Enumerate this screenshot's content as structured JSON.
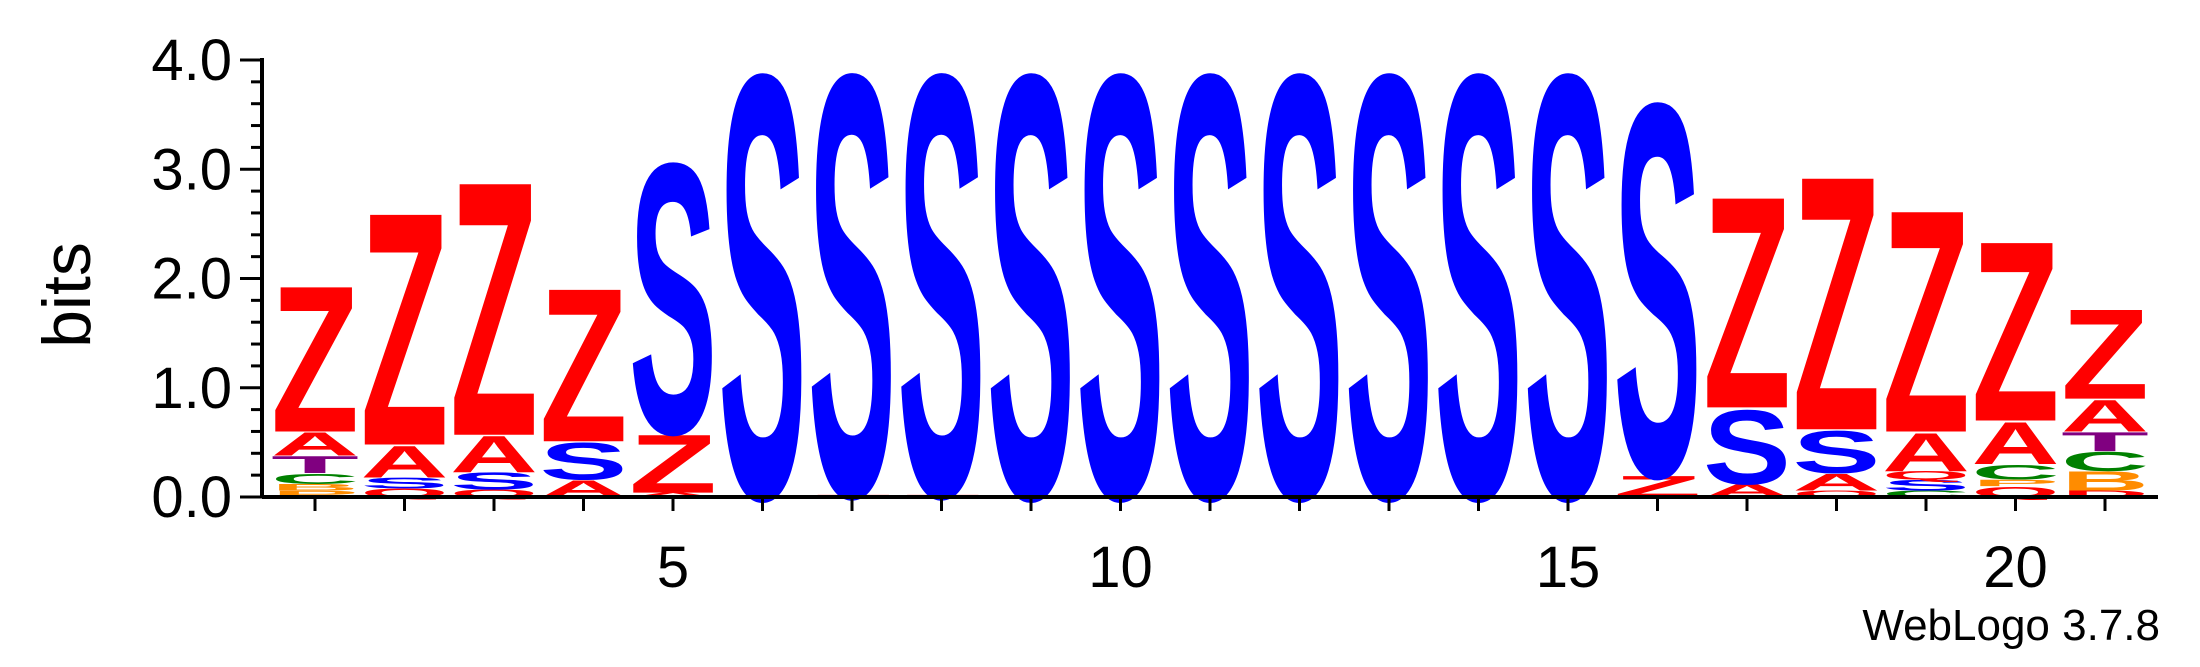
{
  "chart_data": {
    "type": "sequence-logo",
    "ylabel": "bits",
    "ylim": [
      0,
      4.0
    ],
    "yticks": [
      {
        "value": 0.0,
        "label": "0.0"
      },
      {
        "value": 1.0,
        "label": "1.0"
      },
      {
        "value": 2.0,
        "label": "2.0"
      },
      {
        "value": 3.0,
        "label": "3.0"
      },
      {
        "value": 4.0,
        "label": "4.0"
      }
    ],
    "xlim": [
      1,
      21
    ],
    "xticks": [
      {
        "value": 5,
        "label": "5"
      },
      {
        "value": 10,
        "label": "10"
      },
      {
        "value": 15,
        "label": "15"
      },
      {
        "value": 20,
        "label": "20"
      }
    ],
    "colors": {
      "Z": "#ff0000",
      "A": "#ff0000",
      "S": "#0000ff",
      "T": "#800080",
      "C": "#008000",
      "Q": "#ff0000",
      "P": "#ff8c00",
      "B": "#ff8c00",
      "D": "#ff0000"
    },
    "positions": [
      {
        "pos": 1,
        "stack": [
          {
            "letter": "P",
            "bits": 0.06
          },
          {
            "letter": "B",
            "bits": 0.06
          },
          {
            "letter": "C",
            "bits": 0.1
          },
          {
            "letter": "T",
            "bits": 0.16
          },
          {
            "letter": "A",
            "bits": 0.22
          },
          {
            "letter": "Z",
            "bits": 1.38
          }
        ]
      },
      {
        "pos": 2,
        "stack": [
          {
            "letter": "Q",
            "bits": 0.08
          },
          {
            "letter": "S",
            "bits": 0.1
          },
          {
            "letter": "A",
            "bits": 0.3
          },
          {
            "letter": "Z",
            "bits": 2.2
          }
        ]
      },
      {
        "pos": 3,
        "stack": [
          {
            "letter": "Q",
            "bits": 0.07
          },
          {
            "letter": "S",
            "bits": 0.16
          },
          {
            "letter": "A",
            "bits": 0.34
          },
          {
            "letter": "Z",
            "bits": 2.4
          }
        ]
      },
      {
        "pos": 4,
        "stack": [
          {
            "letter": "A",
            "bits": 0.16
          },
          {
            "letter": "S",
            "bits": 0.35
          },
          {
            "letter": "Z",
            "bits": 1.45
          }
        ]
      },
      {
        "pos": 5,
        "stack": [
          {
            "letter": "A",
            "bits": 0.04
          },
          {
            "letter": "Z",
            "bits": 0.55
          },
          {
            "letter": "S",
            "bits": 2.55
          }
        ]
      },
      {
        "pos": 6,
        "stack": [
          {
            "letter": "S",
            "bits": 4.0
          }
        ]
      },
      {
        "pos": 7,
        "stack": [
          {
            "letter": "Z",
            "bits": 0.02
          },
          {
            "letter": "S",
            "bits": 3.98
          }
        ]
      },
      {
        "pos": 8,
        "stack": [
          {
            "letter": "Z",
            "bits": 0.02
          },
          {
            "letter": "S",
            "bits": 3.98
          }
        ]
      },
      {
        "pos": 9,
        "stack": [
          {
            "letter": "S",
            "bits": 4.0
          }
        ]
      },
      {
        "pos": 10,
        "stack": [
          {
            "letter": "S",
            "bits": 4.0
          }
        ]
      },
      {
        "pos": 11,
        "stack": [
          {
            "letter": "S",
            "bits": 4.0
          }
        ]
      },
      {
        "pos": 12,
        "stack": [
          {
            "letter": "S",
            "bits": 4.0
          }
        ]
      },
      {
        "pos": 13,
        "stack": [
          {
            "letter": "S",
            "bits": 4.0
          }
        ]
      },
      {
        "pos": 14,
        "stack": [
          {
            "letter": "S",
            "bits": 4.0
          }
        ]
      },
      {
        "pos": 15,
        "stack": [
          {
            "letter": "S",
            "bits": 4.0
          }
        ]
      },
      {
        "pos": 16,
        "stack": [
          {
            "letter": "Z",
            "bits": 0.2
          },
          {
            "letter": "S",
            "bits": 3.52
          }
        ]
      },
      {
        "pos": 17,
        "stack": [
          {
            "letter": "A",
            "bits": 0.12
          },
          {
            "letter": "S",
            "bits": 0.7
          },
          {
            "letter": "Z",
            "bits": 2.0
          }
        ]
      },
      {
        "pos": 18,
        "stack": [
          {
            "letter": "Q",
            "bits": 0.06
          },
          {
            "letter": "A",
            "bits": 0.16
          },
          {
            "letter": "S",
            "bits": 0.4
          },
          {
            "letter": "Z",
            "bits": 2.4
          }
        ]
      },
      {
        "pos": 19,
        "stack": [
          {
            "letter": "C",
            "bits": 0.06
          },
          {
            "letter": "S",
            "bits": 0.1
          },
          {
            "letter": "Q",
            "bits": 0.08
          },
          {
            "letter": "A",
            "bits": 0.36
          },
          {
            "letter": "Z",
            "bits": 2.1
          }
        ]
      },
      {
        "pos": 20,
        "stack": [
          {
            "letter": "Q",
            "bits": 0.1
          },
          {
            "letter": "P",
            "bits": 0.06
          },
          {
            "letter": "C",
            "bits": 0.14
          },
          {
            "letter": "A",
            "bits": 0.4
          },
          {
            "letter": "Z",
            "bits": 1.7
          }
        ]
      },
      {
        "pos": 21,
        "stack": [
          {
            "letter": "D",
            "bits": 0.06
          },
          {
            "letter": "B",
            "bits": 0.18
          },
          {
            "letter": "C",
            "bits": 0.18
          },
          {
            "letter": "T",
            "bits": 0.18
          },
          {
            "letter": "A",
            "bits": 0.3
          },
          {
            "letter": "Z",
            "bits": 0.85
          }
        ]
      }
    ]
  },
  "footer": {
    "credit": "WebLogo 3.7.8"
  }
}
